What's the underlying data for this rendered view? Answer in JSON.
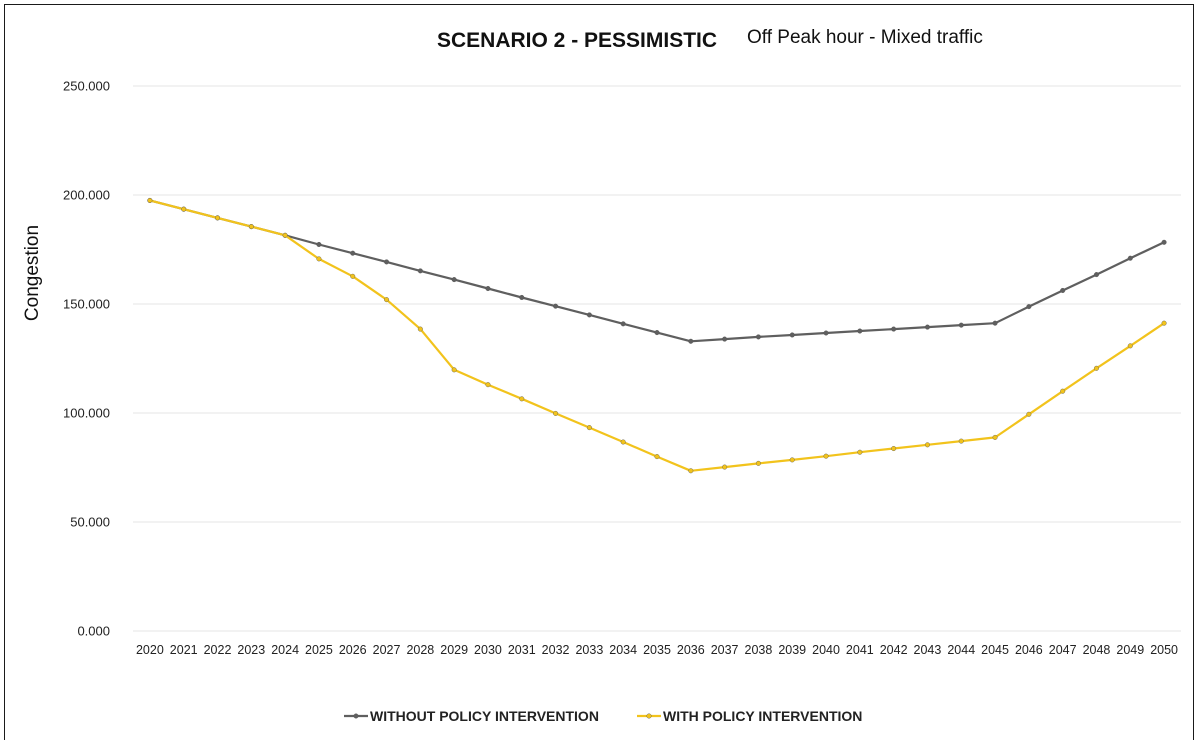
{
  "chart_data": {
    "type": "line",
    "title": "SCENARIO 2 - PESSIMISTIC",
    "subtitle": "Off Peak hour - Mixed traffic",
    "xlabel": "",
    "ylabel": "Congestion",
    "ylim": [
      0,
      250
    ],
    "yticks": [
      "0.000",
      "50.000",
      "100.000",
      "150.000",
      "200.000",
      "250.000"
    ],
    "grid": true,
    "legend_position": "bottom-center",
    "categories": [
      "2020",
      "2021",
      "2022",
      "2023",
      "2024",
      "2025",
      "2026",
      "2027",
      "2028",
      "2029",
      "2030",
      "2031",
      "2032",
      "2033",
      "2034",
      "2035",
      "2036",
      "2037",
      "2038",
      "2039",
      "2040",
      "2041",
      "2042",
      "2043",
      "2044",
      "2045",
      "2046",
      "2047",
      "2048",
      "2049",
      "2050"
    ],
    "series": [
      {
        "name": "WITHOUT POLICY INTERVENTION",
        "color": "#5f5f5f",
        "values": [
          197.5,
          193.5,
          189.5,
          185.5,
          181.5,
          177.3,
          173.3,
          169.3,
          165.2,
          161.2,
          157.1,
          153.0,
          149.0,
          145.0,
          140.9,
          136.9,
          132.9,
          133.9,
          134.9,
          135.8,
          136.7,
          137.6,
          138.5,
          139.4,
          140.3,
          141.2,
          148.8,
          156.2,
          163.5,
          171.0,
          178.3
        ]
      },
      {
        "name": "WITH POLICY INTERVENTION",
        "color": "#f2c31c",
        "values": [
          197.5,
          193.5,
          189.5,
          185.5,
          181.5,
          170.7,
          162.7,
          152.0,
          138.5,
          119.8,
          113.0,
          106.5,
          99.8,
          93.3,
          86.7,
          80.0,
          73.5,
          75.2,
          76.9,
          78.5,
          80.2,
          82.0,
          83.7,
          85.4,
          87.1,
          88.8,
          99.4,
          110.0,
          120.5,
          130.8,
          141.2
        ]
      }
    ]
  }
}
